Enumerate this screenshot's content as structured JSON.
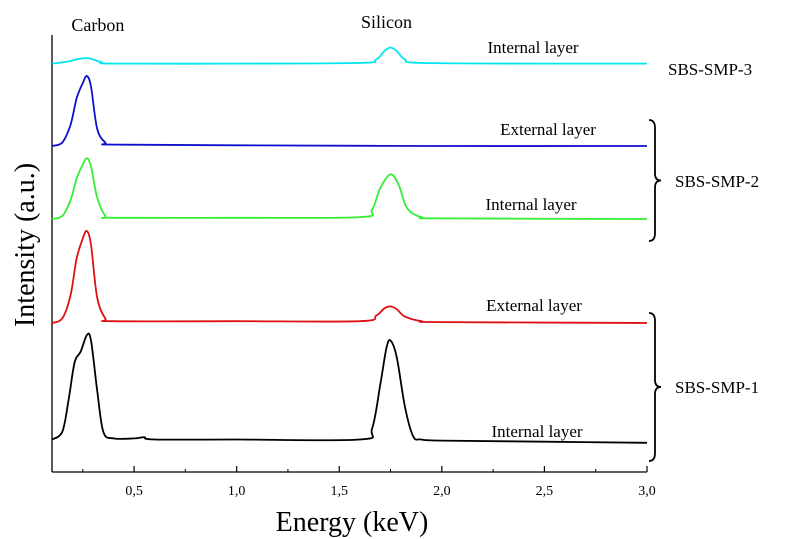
{
  "chart_data": {
    "type": "line",
    "xlabel": "Energy (keV)",
    "ylabel": "Intensity (a.u.)",
    "xlim": [
      0.1,
      3.0
    ],
    "x_ticks": [
      {
        "value": 0.5,
        "label": "0,5"
      },
      {
        "value": 1.0,
        "label": "1,0"
      },
      {
        "value": 1.5,
        "label": "1,5"
      },
      {
        "value": 2.0,
        "label": "2,0"
      },
      {
        "value": 2.5,
        "label": "2,5"
      },
      {
        "value": 3.0,
        "label": "3,0"
      }
    ],
    "grid": false,
    "annotations": [
      {
        "text": "Carbon",
        "x": 0.27
      },
      {
        "text": "Silicon",
        "x": 1.75
      }
    ],
    "groups": [
      "SBS-SMP-3",
      "SBS-SMP-2",
      "SBS-SMP-1"
    ],
    "series": [
      {
        "label": "Internal layer",
        "group": "SBS-SMP-3",
        "color": "#00e5ee",
        "x": [
          0.1,
          0.18,
          0.22,
          0.27,
          0.3,
          0.34,
          0.4,
          1.0,
          1.6,
          1.68,
          1.72,
          1.75,
          1.78,
          1.82,
          1.9,
          2.5,
          3.0
        ],
        "y": [
          0.02,
          0.05,
          0.08,
          0.1,
          0.08,
          0.04,
          0.02,
          0.02,
          0.03,
          0.08,
          0.2,
          0.25,
          0.2,
          0.08,
          0.03,
          0.02,
          0.02
        ]
      },
      {
        "label": "External layer",
        "group": "SBS-SMP-2",
        "color": "#1010cc",
        "x": [
          0.1,
          0.15,
          0.19,
          0.22,
          0.25,
          0.27,
          0.29,
          0.32,
          0.36,
          0.4,
          1.0,
          2.0,
          3.0
        ],
        "y": [
          0.0,
          0.05,
          0.3,
          0.68,
          0.9,
          1.0,
          0.85,
          0.25,
          0.05,
          0.02,
          0.01,
          0.0,
          0.0
        ]
      },
      {
        "label": "Internal layer",
        "group": "SBS-SMP-2",
        "color": "#33ee33",
        "x": [
          0.1,
          0.15,
          0.19,
          0.22,
          0.25,
          0.27,
          0.29,
          0.32,
          0.36,
          0.4,
          1.0,
          1.6,
          1.66,
          1.7,
          1.75,
          1.79,
          1.83,
          1.9,
          2.0,
          3.0
        ],
        "y": [
          0.0,
          0.05,
          0.3,
          0.65,
          0.88,
          0.98,
          0.85,
          0.35,
          0.05,
          0.02,
          0.02,
          0.03,
          0.15,
          0.5,
          0.72,
          0.55,
          0.18,
          0.03,
          0.01,
          0.0
        ]
      },
      {
        "label": "External layer",
        "group": "SBS-SMP-1",
        "color": "#dd1111",
        "x": [
          0.1,
          0.15,
          0.19,
          0.22,
          0.25,
          0.27,
          0.29,
          0.32,
          0.36,
          0.4,
          1.0,
          1.6,
          1.68,
          1.72,
          1.75,
          1.78,
          1.82,
          1.9,
          2.0,
          3.0
        ],
        "y": [
          0.0,
          0.05,
          0.3,
          0.7,
          0.92,
          1.0,
          0.85,
          0.28,
          0.05,
          0.02,
          0.02,
          0.02,
          0.08,
          0.16,
          0.18,
          0.15,
          0.07,
          0.02,
          0.01,
          0.0
        ]
      },
      {
        "label": "Internal layer",
        "group": "SBS-SMP-1",
        "color": "#000000",
        "x": [
          0.1,
          0.15,
          0.18,
          0.21,
          0.24,
          0.27,
          0.29,
          0.32,
          0.35,
          0.4,
          0.5,
          0.55,
          0.6,
          1.0,
          1.6,
          1.66,
          1.7,
          1.73,
          1.75,
          1.78,
          1.82,
          1.86,
          1.9,
          2.0,
          2.5,
          3.0
        ],
        "y": [
          0.05,
          0.12,
          0.4,
          0.75,
          0.85,
          1.0,
          0.95,
          0.5,
          0.12,
          0.06,
          0.06,
          0.07,
          0.05,
          0.05,
          0.05,
          0.15,
          0.55,
          0.88,
          0.95,
          0.8,
          0.35,
          0.08,
          0.05,
          0.04,
          0.03,
          0.02
        ]
      }
    ]
  }
}
